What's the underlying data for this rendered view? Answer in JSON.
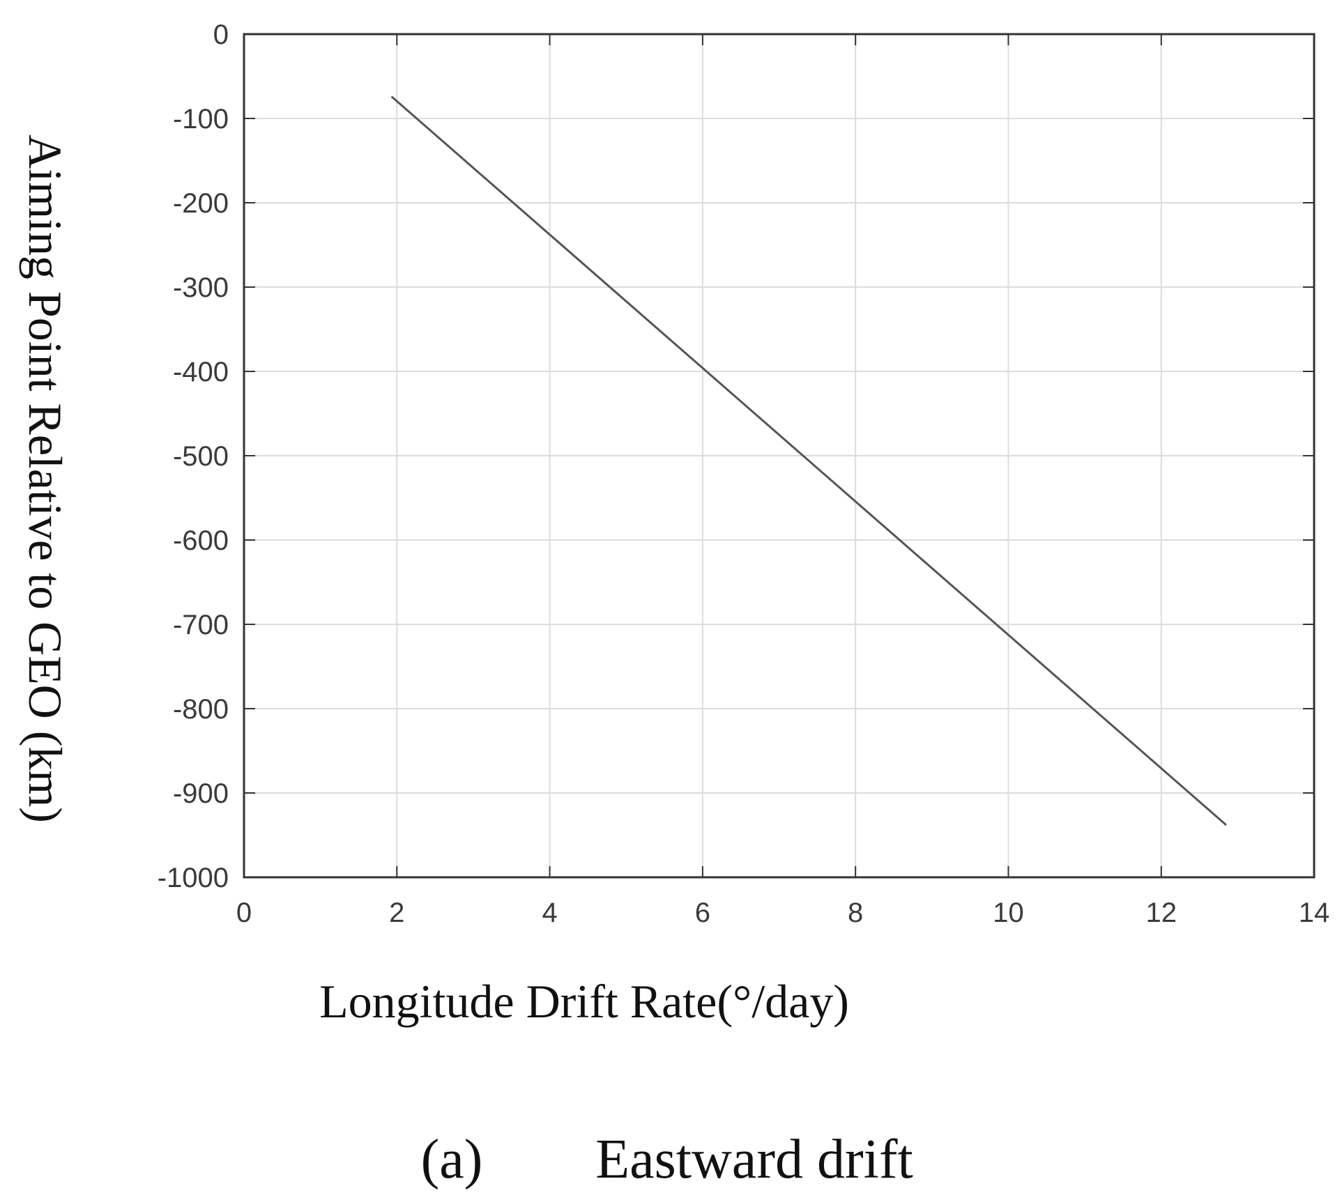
{
  "chart_data": {
    "type": "line",
    "title": "",
    "xlabel": "Longitude Drift Rate(°/day)",
    "ylabel": "Aiming Point Relative to GEO (km)",
    "xlim": [
      0,
      14
    ],
    "ylim": [
      -1000,
      0
    ],
    "xticks": [
      "0",
      "2",
      "4",
      "6",
      "8",
      "10",
      "12",
      "14"
    ],
    "yticks": [
      "0",
      "-100",
      "-200",
      "-300",
      "-400",
      "-500",
      "-600",
      "-700",
      "-800",
      "-900",
      "-1000"
    ],
    "grid": true,
    "series": [
      {
        "x": [
          1.93,
          12.85
        ],
        "y": [
          -74,
          -938
        ],
        "color": "#555555"
      }
    ]
  },
  "caption": {
    "label": "(a)",
    "text": "Eastward drift"
  }
}
